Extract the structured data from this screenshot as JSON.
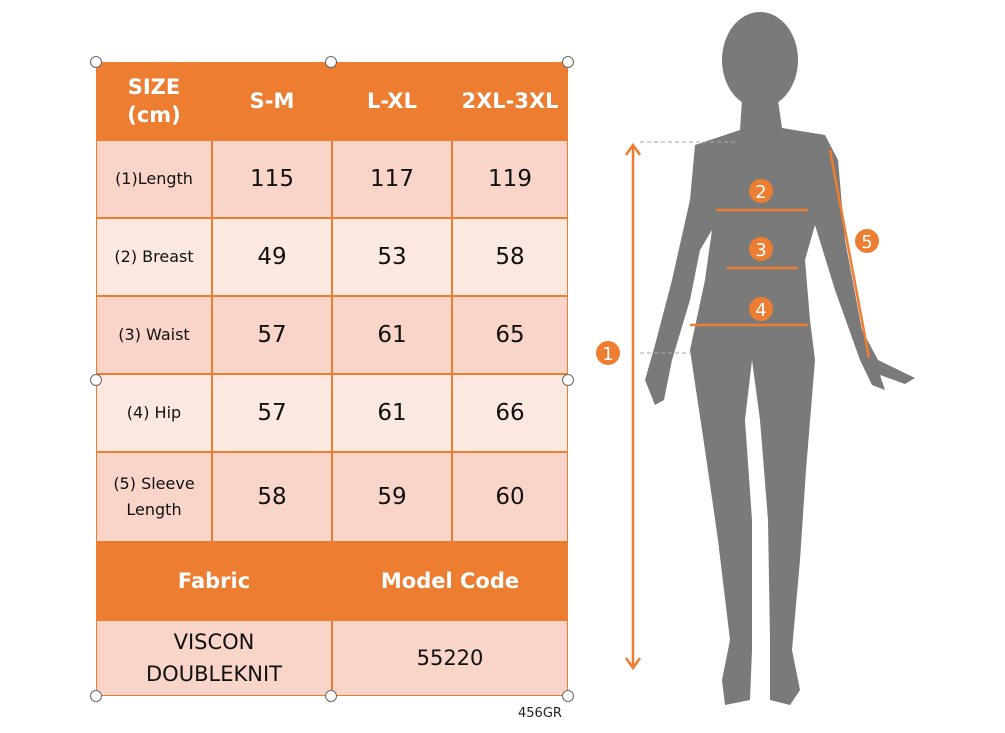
{
  "table": {
    "header": [
      "SIZE\n(cm)",
      "S-M",
      "L-XL",
      "2XL-3XL"
    ],
    "rows": [
      {
        "label": "(1)Length",
        "values": [
          "115",
          "117",
          "119"
        ]
      },
      {
        "label": "(2) Breast",
        "values": [
          "49",
          "53",
          "58"
        ]
      },
      {
        "label": "(3) Waist",
        "values": [
          "57",
          "61",
          "65"
        ]
      },
      {
        "label": "(4) Hip",
        "values": [
          "57",
          "61",
          "66"
        ]
      },
      {
        "label": "(5) Sleeve Length",
        "values": [
          "58",
          "59",
          "60"
        ]
      }
    ],
    "fabric_label": "Fabric",
    "model_code_label": "Model Code",
    "fabric_value": "VISCON DOUBLEKNIT",
    "model_code_value": "55220"
  },
  "image_code": "456GR",
  "markers": [
    "1",
    "2",
    "3",
    "4",
    "5"
  ],
  "colors": {
    "accent": "#ed7d31",
    "cell_dark": "#f8d5c8",
    "cell_light": "#fbe8e1",
    "silhouette": "#7a7a7a"
  }
}
